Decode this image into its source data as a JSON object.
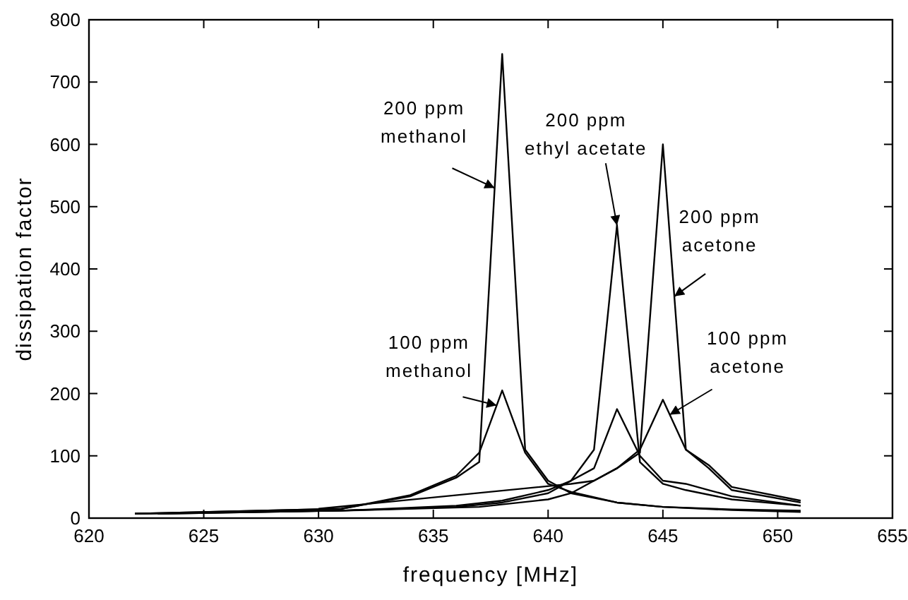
{
  "chart_data": {
    "type": "line",
    "xlabel": "frequency [MHz]",
    "ylabel": "dissipation factor",
    "xlim": [
      620,
      655
    ],
    "ylim": [
      0,
      800
    ],
    "xticks": [
      620,
      625,
      630,
      635,
      640,
      645,
      650,
      655
    ],
    "yticks": [
      0,
      100,
      200,
      300,
      400,
      500,
      600,
      700,
      800
    ],
    "grid": false,
    "marker": "none",
    "line_style": "solid",
    "series": [
      {
        "color": "#000000",
        "x": [
          622,
          631,
          634,
          636,
          637,
          638,
          639,
          640,
          641,
          643,
          645,
          648,
          651
        ],
        "values": [
          7,
          15,
          35,
          65,
          90,
          745,
          110,
          60,
          40,
          25,
          18,
          14,
          12
        ]
      },
      {
        "color": "#000000",
        "x": [
          622,
          631,
          634,
          636,
          637,
          638,
          639,
          640,
          641,
          643,
          645,
          648,
          651
        ],
        "values": [
          7,
          15,
          37,
          68,
          105,
          205,
          105,
          55,
          42,
          25,
          18,
          13,
          10
        ]
      },
      {
        "color": "#000000",
        "x": [
          623,
          631,
          636,
          638,
          640,
          641,
          642,
          643,
          644,
          645,
          646,
          648,
          651
        ],
        "values": [
          7,
          12,
          18,
          25,
          40,
          60,
          110,
          470,
          90,
          55,
          45,
          30,
          20
        ]
      },
      {
        "color": "#000000",
        "x": [
          623,
          631,
          636,
          638,
          640,
          641,
          642,
          643,
          644,
          645,
          646,
          647,
          648,
          651
        ],
        "values": [
          7,
          12,
          20,
          28,
          45,
          60,
          80,
          175,
          100,
          60,
          55,
          45,
          35,
          20
        ]
      },
      {
        "color": "#000000",
        "x": [
          622,
          631,
          637,
          640,
          641,
          642,
          643,
          644,
          645,
          646,
          647,
          648,
          651
        ],
        "values": [
          7,
          12,
          18,
          30,
          40,
          60,
          80,
          105,
          600,
          110,
          85,
          50,
          28
        ]
      },
      {
        "color": "#000000",
        "x": [
          630,
          641,
          642,
          643,
          644,
          645,
          646,
          647,
          648,
          651
        ],
        "values": [
          15,
          55,
          60,
          80,
          110,
          190,
          110,
          80,
          45,
          25
        ]
      }
    ],
    "annotations": [
      {
        "text": "200 ppm\nmethanol",
        "x": 637.67,
        "y": 530
      },
      {
        "text": "100 ppm\nmethanol",
        "x": 637.76,
        "y": 181
      },
      {
        "text": "200 ppm\nethyl acetate",
        "x": 643,
        "y": 470
      },
      {
        "text": "200 ppm\nacetone",
        "x": 645.5,
        "y": 356
      },
      {
        "text": "100 ppm\nacetone",
        "x": 645.3,
        "y": 166
      }
    ]
  }
}
